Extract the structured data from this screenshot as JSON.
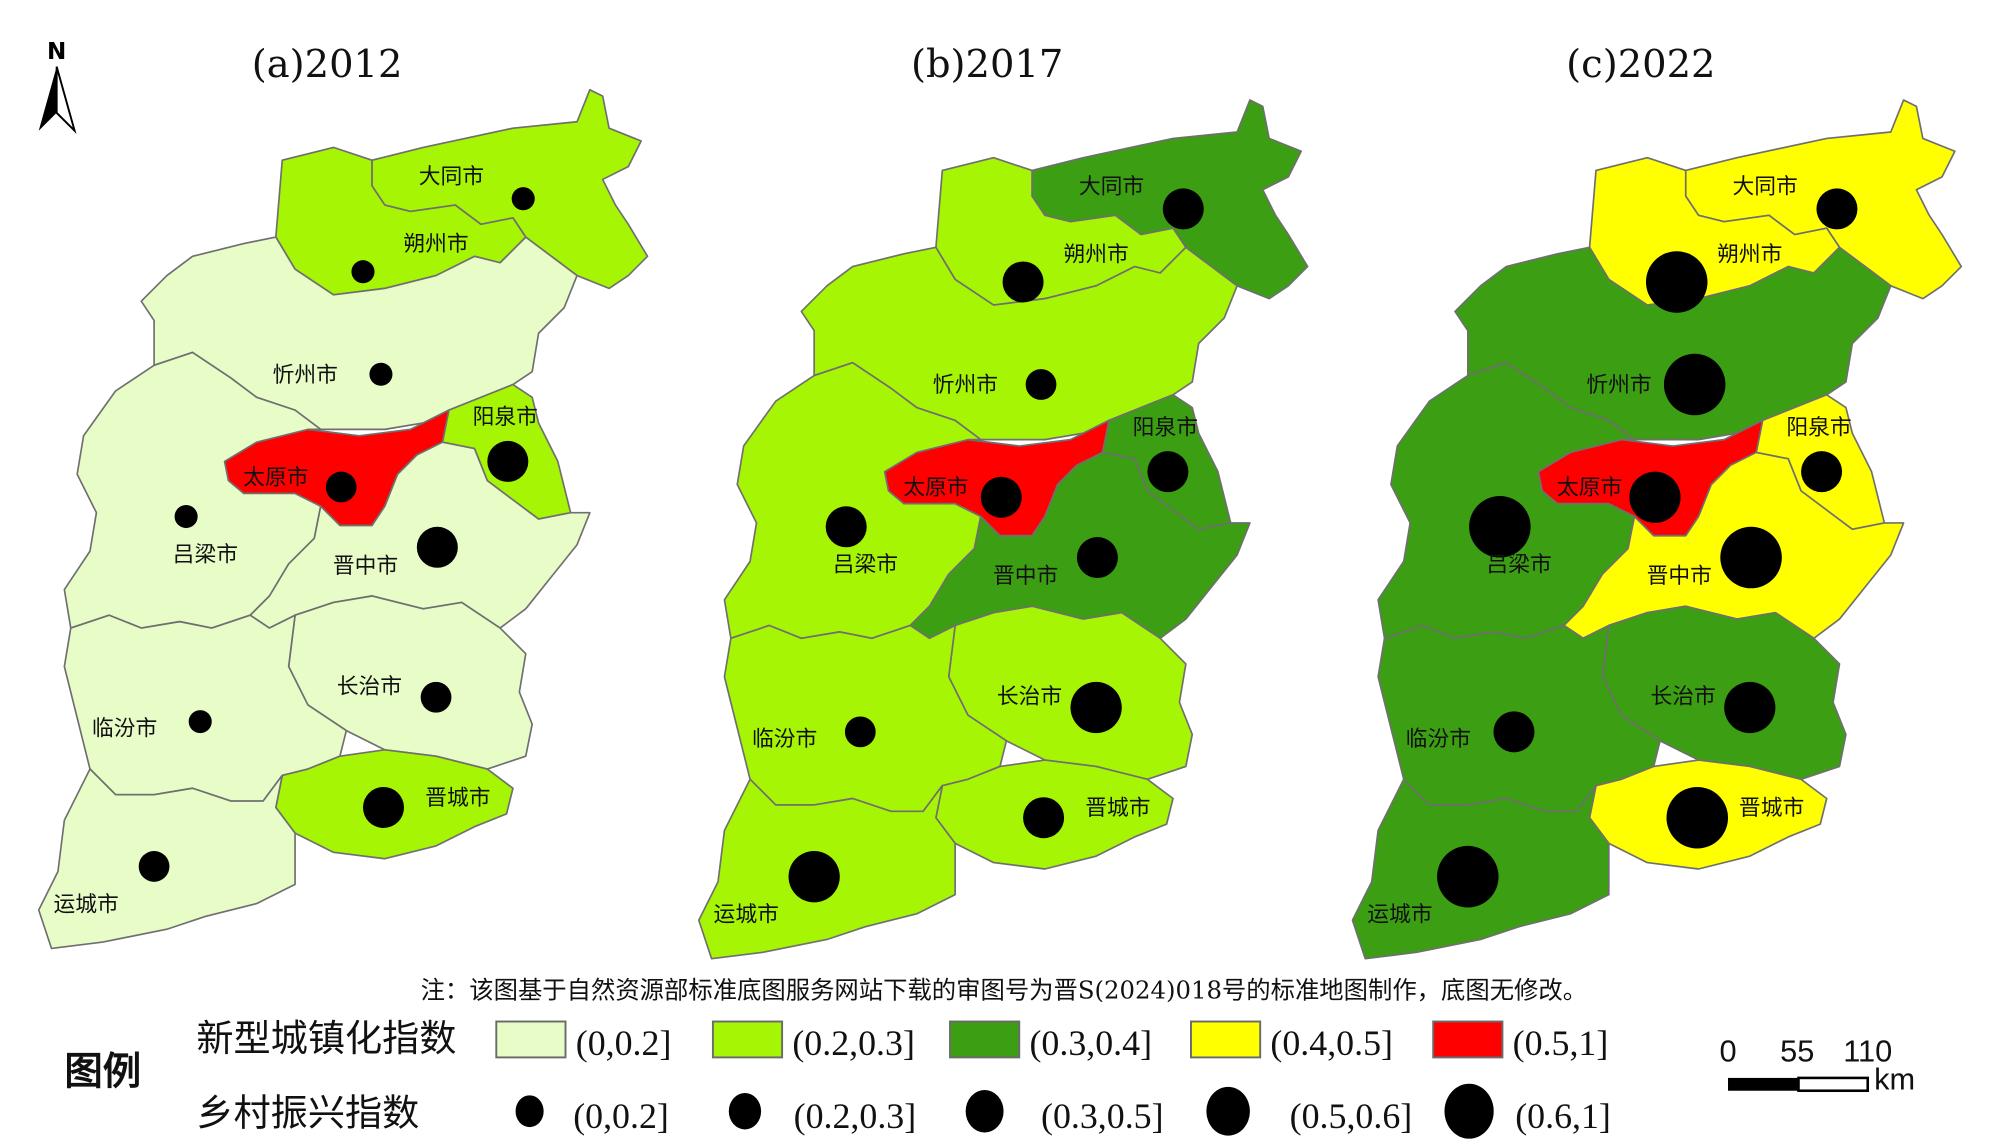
{
  "north_label": "N",
  "note": "注：该图基于自然资源部标准底图服务网站下载的审图号为晋S(2024)018号的标准地图制作，底图无修改。",
  "maps": [
    {
      "title": "(a)2012",
      "urbanization_class": {
        "大同市": 1,
        "朔州市": 1,
        "忻州市": 0,
        "阳泉市": 1,
        "太原市": 4,
        "吕梁市": 0,
        "晋中市": 0,
        "长治市": 0,
        "临汾市": 0,
        "晋城市": 1,
        "运城市": 0
      },
      "revitalization_class": {
        "大同市": 0,
        "朔州市": 0,
        "忻州市": 0,
        "阳泉市": 2,
        "太原市": 1,
        "吕梁市": 0,
        "晋中市": 2,
        "长治市": 1,
        "临汾市": 0,
        "晋城市": 2,
        "运城市": 1
      }
    },
    {
      "title": "(b)2017",
      "urbanization_class": {
        "大同市": 2,
        "朔州市": 1,
        "忻州市": 1,
        "阳泉市": 2,
        "太原市": 4,
        "吕梁市": 1,
        "晋中市": 2,
        "长治市": 1,
        "临汾市": 1,
        "晋城市": 1,
        "运城市": 1
      },
      "revitalization_class": {
        "大同市": 2,
        "朔州市": 2,
        "忻州市": 1,
        "阳泉市": 2,
        "太原市": 2,
        "吕梁市": 2,
        "晋中市": 2,
        "长治市": 3,
        "临汾市": 1,
        "晋城市": 2,
        "运城市": 3
      }
    },
    {
      "title": "(c)2022",
      "urbanization_class": {
        "大同市": 3,
        "朔州市": 3,
        "忻州市": 2,
        "阳泉市": 3,
        "太原市": 4,
        "吕梁市": 2,
        "晋中市": 3,
        "长治市": 2,
        "临汾市": 2,
        "晋城市": 3,
        "运城市": 2
      },
      "revitalization_class": {
        "大同市": 2,
        "朔州市": 4,
        "忻州市": 4,
        "阳泉市": 2,
        "太原市": 3,
        "吕梁市": 4,
        "晋中市": 4,
        "长治市": 3,
        "临汾市": 2,
        "晋城市": 4,
        "运城市": 4
      }
    }
  ],
  "cities": [
    "大同市",
    "朔州市",
    "忻州市",
    "阳泉市",
    "太原市",
    "吕梁市",
    "晋中市",
    "长治市",
    "临汾市",
    "晋城市",
    "运城市"
  ],
  "legend": {
    "title": "图例",
    "urbanization_label": "新型城镇化指数",
    "urbanization_classes": [
      {
        "range": "(0,0.2]",
        "color": "#e8fcc8"
      },
      {
        "range": "(0.2,0.3]",
        "color": "#a6f505"
      },
      {
        "range": "(0.3,0.4]",
        "color": "#3c9e12"
      },
      {
        "range": "(0.4,0.5]",
        "color": "#ffff00"
      },
      {
        "range": "(0.5,1]",
        "color": "#ff0000"
      }
    ],
    "revitalization_label": "乡村振兴指数",
    "revitalization_classes": [
      {
        "range": "(0,0.2]"
      },
      {
        "range": "(0.2,0.3]"
      },
      {
        "range": "(0.3,0.5]"
      },
      {
        "range": "(0.5,0.6]"
      },
      {
        "range": "(0.6,1]"
      }
    ]
  },
  "scale_bar": {
    "ticks": [
      "0",
      "55",
      "110"
    ],
    "unit": "km"
  }
}
